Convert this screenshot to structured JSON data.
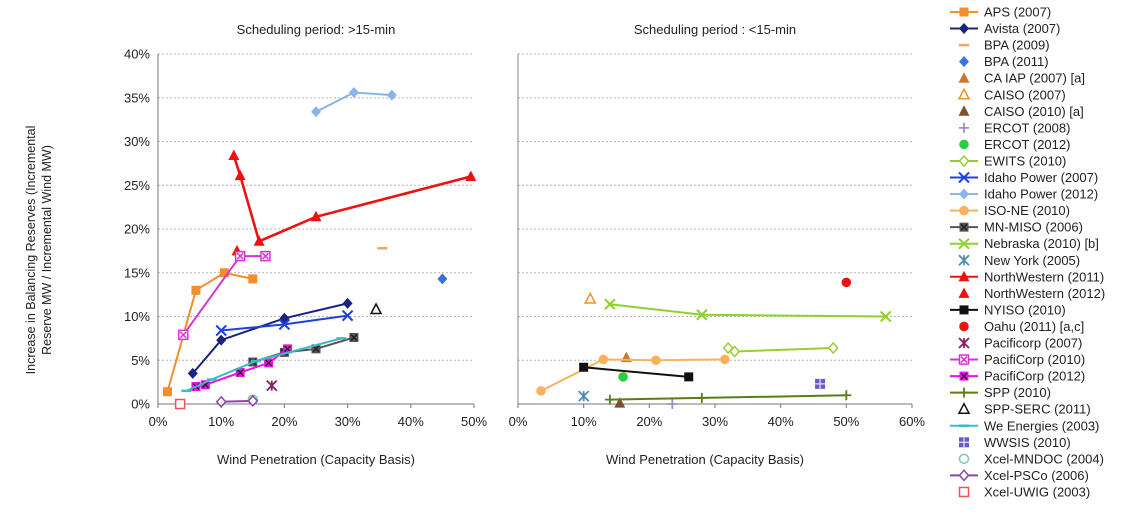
{
  "y_axis_label_line1": "Increase in Balancing Reserves  (Incremental",
  "y_axis_label_line2": "Reserve MW / Incremental Wind MW)",
  "legend_placement": "right",
  "chart_data": [
    {
      "type": "scatter",
      "title": "Scheduling period: >15-min",
      "xlabel": "Wind Penetration (Capacity Basis)",
      "xlim": [
        0,
        50
      ],
      "ylim": [
        0,
        40
      ],
      "x_ticks": [
        "0%",
        "10%",
        "20%",
        "30%",
        "40%",
        "50%"
      ],
      "y_ticks": [
        "0%",
        "5%",
        "10%",
        "15%",
        "20%",
        "25%",
        "30%",
        "35%",
        "40%"
      ],
      "grid": "horizontal",
      "series": [
        {
          "name": "APS (2007)",
          "points": [
            [
              1.5,
              1.4
            ],
            [
              6,
              13
            ],
            [
              10.5,
              15
            ],
            [
              15,
              14.3
            ]
          ]
        },
        {
          "name": "Avista (2007)",
          "points": [
            [
              5.5,
              3.5
            ],
            [
              10,
              7.3
            ],
            [
              20,
              9.8
            ],
            [
              30,
              11.5
            ]
          ]
        },
        {
          "name": "BPA (2009)",
          "points": [
            [
              35.5,
              17.8
            ]
          ]
        },
        {
          "name": "BPA (2011)",
          "points": [
            [
              45,
              14.3
            ]
          ]
        },
        {
          "name": "Idaho Power (2007)",
          "points": [
            [
              10,
              8.4
            ],
            [
              20,
              9.1
            ],
            [
              30,
              10.1
            ]
          ]
        },
        {
          "name": "Idaho Power (2012)",
          "points": [
            [
              25,
              33.4
            ],
            [
              31,
              35.6
            ],
            [
              37,
              35.3
            ]
          ]
        },
        {
          "name": "MN-MISO (2006)",
          "points": [
            [
              15,
              4.8
            ],
            [
              20,
              5.9
            ],
            [
              25,
              6.3
            ],
            [
              31,
              7.6
            ]
          ]
        },
        {
          "name": "NorthWestern (2011)",
          "points": [
            [
              12,
              28.4
            ],
            [
              13,
              26.1
            ],
            [
              16,
              18.6
            ],
            [
              25,
              21.4
            ],
            [
              49.5,
              26
            ]
          ]
        },
        {
          "name": "NorthWestern (2012)",
          "points": [
            [
              12.5,
              17.5
            ]
          ]
        },
        {
          "name": "Pacificorp (2007)",
          "points": [
            [
              18,
              2.1
            ]
          ]
        },
        {
          "name": "PacifiCorp (2010)",
          "points": [
            [
              4,
              7.9
            ],
            [
              13,
              16.9
            ],
            [
              17,
              16.9
            ]
          ]
        },
        {
          "name": "PacifiCorp (2012)",
          "points": [
            [
              6,
              2
            ],
            [
              7.5,
              2.2
            ],
            [
              13,
              3.6
            ],
            [
              17.5,
              4.7
            ],
            [
              20.5,
              6.3
            ]
          ]
        },
        {
          "name": "SPP-SERC (2011)",
          "points": [
            [
              34.5,
              10.8
            ]
          ]
        },
        {
          "name": "We Energies (2003)",
          "points": [
            [
              4.5,
              1.5
            ],
            [
              8.5,
              2.8
            ],
            [
              15.5,
              4.9
            ],
            [
              29,
              7.5
            ]
          ]
        },
        {
          "name": "Xcel-MNDOC (2004)",
          "points": [
            [
              15,
              0.5
            ]
          ]
        },
        {
          "name": "Xcel-PSCo (2006)",
          "points": [
            [
              10,
              0.25
            ],
            [
              15,
              0.35
            ]
          ]
        },
        {
          "name": "Xcel-UWIG (2003)",
          "points": [
            [
              3.5,
              0
            ]
          ]
        }
      ]
    },
    {
      "type": "scatter",
      "title": "Scheduling period : <15-min",
      "xlabel": "Wind Penetration (Capacity Basis)",
      "xlim": [
        0,
        60
      ],
      "ylim": [
        0,
        40
      ],
      "x_ticks": [
        "0%",
        "10%",
        "20%",
        "30%",
        "40%",
        "50%",
        "60%"
      ],
      "grid": "horizontal",
      "series": [
        {
          "name": "CA IAP (2007) [a]",
          "points": [
            [
              16.5,
              5.3
            ]
          ]
        },
        {
          "name": "CAISO (2007)",
          "points": [
            [
              11,
              12
            ]
          ]
        },
        {
          "name": "CAISO (2010) [a]",
          "points": [
            [
              15.5,
              0.1
            ]
          ]
        },
        {
          "name": "ERCOT (2008)",
          "points": [
            [
              23.5,
              0
            ]
          ]
        },
        {
          "name": "ERCOT (2012)",
          "points": [
            [
              16,
              3.1
            ]
          ]
        },
        {
          "name": "EWITS (2010)",
          "points": [
            [
              32,
              6.4
            ],
            [
              33,
              6
            ],
            [
              48,
              6.4
            ]
          ]
        },
        {
          "name": "ISO-NE (2010)",
          "points": [
            [
              3.5,
              1.5
            ],
            [
              13,
              5.1
            ],
            [
              21,
              5
            ],
            [
              31.5,
              5.1
            ]
          ]
        },
        {
          "name": "Nebraska (2010) [b]",
          "points": [
            [
              14,
              11.4
            ],
            [
              28,
              10.2
            ],
            [
              56,
              10
            ]
          ]
        },
        {
          "name": "New York (2005)",
          "points": [
            [
              10,
              0.9
            ]
          ]
        },
        {
          "name": "NYISO (2010)",
          "points": [
            [
              10,
              4.2
            ],
            [
              26,
              3.1
            ]
          ]
        },
        {
          "name": "Oahu (2011) [a,c]",
          "points": [
            [
              50,
              13.9
            ]
          ]
        },
        {
          "name": "SPP (2010)",
          "points": [
            [
              14,
              0.5
            ],
            [
              28,
              0.7
            ],
            [
              50,
              1
            ]
          ]
        },
        {
          "name": "WWSIS (2010)",
          "points": [
            [
              46,
              2.3
            ]
          ]
        }
      ]
    }
  ],
  "legend": [
    {
      "label": "APS (2007)",
      "color": "#f28e2b",
      "marker": "square",
      "line": true
    },
    {
      "label": "Avista (2007)",
      "color": "#1a237e",
      "marker": "diamond",
      "line": true
    },
    {
      "label": "BPA (2009)",
      "color": "#f4a460",
      "marker": "dash",
      "line": false
    },
    {
      "label": "BPA (2011)",
      "color": "#3d6fe0",
      "marker": "diamond",
      "line": false
    },
    {
      "label": "CA IAP (2007) [a]",
      "color": "#c77a2e",
      "marker": "triangle",
      "line": false
    },
    {
      "label": "CAISO (2007)",
      "color": "#f28e2b",
      "marker": "triangle-open",
      "line": false
    },
    {
      "label": "CAISO (2010) [a]",
      "color": "#7a5230",
      "marker": "triangle",
      "line": false
    },
    {
      "label": "ERCOT (2008)",
      "color": "#9b8fc9",
      "marker": "plus",
      "line": false
    },
    {
      "label": "ERCOT (2012)",
      "color": "#2ecc40",
      "marker": "circle",
      "line": false
    },
    {
      "label": "EWITS (2010)",
      "color": "#9acd32",
      "marker": "diamond-open",
      "line": true
    },
    {
      "label": "Idaho Power (2007)",
      "color": "#2040e0",
      "marker": "x",
      "line": true
    },
    {
      "label": "Idaho Power (2012)",
      "color": "#8db4e8",
      "marker": "diamond",
      "line": true
    },
    {
      "label": "ISO-NE (2010)",
      "color": "#f9b25b",
      "marker": "circle",
      "line": true
    },
    {
      "label": "MN-MISO (2006)",
      "color": "#555555",
      "marker": "box-x",
      "line": true
    },
    {
      "label": "Nebraska (2010) [b]",
      "color": "#8fd12b",
      "marker": "x",
      "line": true
    },
    {
      "label": "New York (2005)",
      "color": "#4a8fb0",
      "marker": "star",
      "line": false
    },
    {
      "label": "NorthWestern (2011)",
      "color": "#ee1111",
      "marker": "triangle",
      "line": true
    },
    {
      "label": "NorthWestern (2012)",
      "color": "#ee1111",
      "marker": "triangle",
      "line": false
    },
    {
      "label": "NYISO (2010)",
      "color": "#111111",
      "marker": "square",
      "line": true
    },
    {
      "label": "Oahu (2011) [a,c]",
      "color": "#ee1111",
      "marker": "circle",
      "line": false
    },
    {
      "label": "Pacificorp (2007)",
      "color": "#8b1c62",
      "marker": "star",
      "line": false
    },
    {
      "label": "PacifiCorp (2010)",
      "color": "#d632d6",
      "marker": "box-x-open",
      "line": true
    },
    {
      "label": "PacifiCorp (2012)",
      "color": "#ee11ee",
      "marker": "box-x",
      "line": true
    },
    {
      "label": "SPP (2010)",
      "color": "#5a7d1a",
      "marker": "plus",
      "line": true
    },
    {
      "label": "SPP-SERC (2011)",
      "color": "#111111",
      "marker": "triangle-open",
      "line": false
    },
    {
      "label": "We Energies (2003)",
      "color": "#3fb8c8",
      "marker": "dash",
      "line": true
    },
    {
      "label": "WWSIS (2010)",
      "color": "#6a5acd",
      "marker": "square-grid",
      "line": false
    },
    {
      "label": "Xcel-MNDOC (2004)",
      "color": "#7fc8a0",
      "marker": "circle-open",
      "line": false
    },
    {
      "label": "Xcel-PSCo (2006)",
      "color": "#8e44ad",
      "marker": "diamond-open",
      "line": true
    },
    {
      "label": "Xcel-UWIG (2003)",
      "color": "#ee5555",
      "marker": "square-open",
      "line": false
    }
  ]
}
